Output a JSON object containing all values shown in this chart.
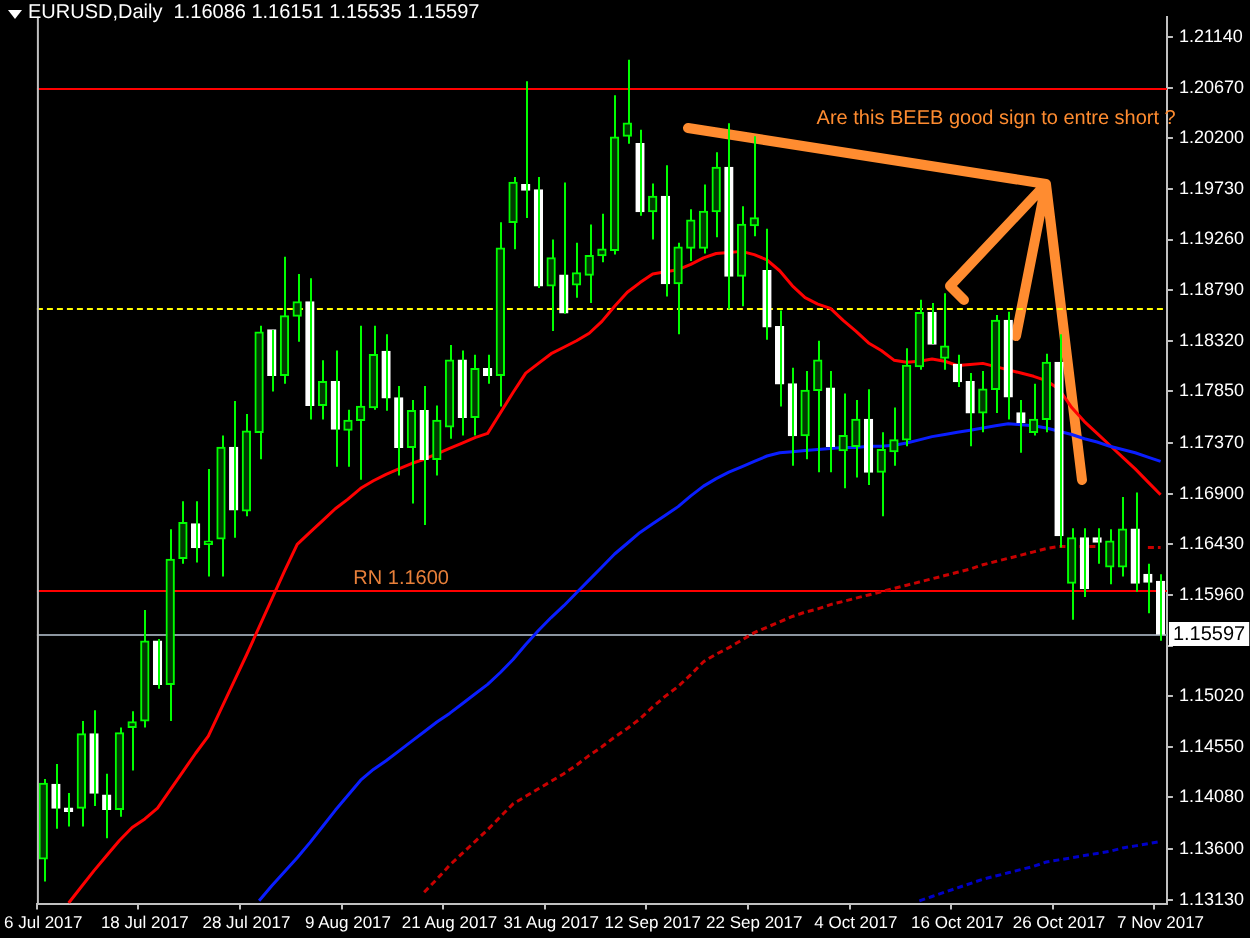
{
  "chart_data": {
    "type": "candlestick",
    "title": "EURUSD,Daily  1.16086 1.16151 1.15535 1.15597",
    "categories": [
      "6 Jul 2017",
      null,
      null,
      null,
      null,
      null,
      null,
      null,
      "18 Jul 2017",
      null,
      null,
      null,
      null,
      null,
      null,
      null,
      "28 Jul 2017",
      null,
      null,
      null,
      null,
      null,
      null,
      null,
      "9 Aug 2017",
      null,
      null,
      null,
      null,
      null,
      null,
      null,
      "21 Aug 2017",
      null,
      null,
      null,
      null,
      null,
      null,
      null,
      "31 Aug 2017",
      null,
      null,
      null,
      null,
      null,
      null,
      null,
      "12 Sep 2017",
      null,
      null,
      null,
      null,
      null,
      null,
      null,
      "22 Sep 2017",
      null,
      null,
      null,
      null,
      null,
      null,
      null,
      "4 Oct 2017",
      null,
      null,
      null,
      null,
      null,
      null,
      null,
      "16 Oct 2017",
      null,
      null,
      null,
      null,
      null,
      null,
      null,
      "26 Oct 2017",
      null,
      null,
      null,
      null,
      null,
      null,
      null,
      "7 Nov 2017"
    ],
    "series": [
      {
        "type": "line",
        "color": "#0000c8",
        "line_style": "dashed",
        "values": [
          null,
          null,
          null,
          null,
          null,
          null,
          null,
          null,
          null,
          null,
          null,
          null,
          null,
          null,
          null,
          null,
          null,
          null,
          null,
          null,
          null,
          null,
          null,
          null,
          null,
          null,
          null,
          null,
          null,
          null,
          null,
          null,
          null,
          null,
          null,
          null,
          null,
          null,
          null,
          null,
          null,
          null,
          null,
          null,
          null,
          null,
          null,
          null,
          null,
          null,
          null,
          null,
          null,
          null,
          null,
          null,
          null,
          null,
          null,
          null,
          null,
          null,
          null,
          null,
          null,
          null,
          null,
          null,
          null,
          1.1312,
          1.1316,
          1.132,
          1.1324,
          1.1328,
          1.1332,
          1.1335,
          1.1338,
          1.1341,
          1.1344,
          1.1348,
          1.135,
          1.1352,
          1.1354,
          1.1356,
          1.1358,
          1.1361,
          1.1363,
          1.1365,
          1.1367
        ]
      },
      {
        "type": "line",
        "color": "#c80000",
        "line_style": "dashed",
        "values": [
          null,
          null,
          null,
          null,
          null,
          null,
          null,
          null,
          null,
          null,
          null,
          null,
          null,
          null,
          null,
          null,
          null,
          null,
          null,
          null,
          null,
          null,
          null,
          null,
          null,
          null,
          null,
          null,
          null,
          null,
          1.132,
          1.1332,
          1.1345,
          1.1356,
          1.1367,
          1.1378,
          1.139,
          1.1402,
          1.1409,
          1.1416,
          1.1423,
          1.143,
          1.1438,
          1.1447,
          1.1455,
          1.1464,
          1.1472,
          1.1481,
          1.1492,
          1.1502,
          1.1511,
          1.1522,
          1.1534,
          1.1541,
          1.1547,
          1.1554,
          1.1561,
          1.1566,
          1.1571,
          1.1576,
          1.158,
          1.1583,
          1.1587,
          1.159,
          1.1593,
          1.1596,
          1.1599,
          1.1602,
          1.1605,
          1.1608,
          1.1611,
          1.1614,
          1.1617,
          1.162,
          1.1624,
          1.1627,
          1.163,
          1.1633,
          1.1636,
          1.1639,
          1.1641,
          1.1641,
          1.1641,
          1.1641,
          null,
          null,
          null,
          1.164,
          1.164
        ]
      },
      {
        "type": "line",
        "color": "#0a1eff",
        "line_style": "solid",
        "values": [
          null,
          null,
          null,
          null,
          null,
          null,
          null,
          null,
          null,
          null,
          null,
          null,
          null,
          null,
          null,
          null,
          null,
          1.1312,
          1.1326,
          1.1339,
          1.1352,
          1.1366,
          1.1381,
          1.1396,
          1.141,
          1.1424,
          1.1434,
          1.1442,
          1.1451,
          1.146,
          1.1469,
          1.1478,
          1.1486,
          1.1495,
          1.1504,
          1.1513,
          1.1524,
          1.1536,
          1.155,
          1.1563,
          1.1575,
          1.1586,
          1.1598,
          1.161,
          1.1622,
          1.1634,
          1.1644,
          1.1654,
          1.1662,
          1.167,
          1.1678,
          1.1688,
          1.1697,
          1.1704,
          1.171,
          1.1715,
          1.172,
          1.1725,
          1.1728,
          1.1729,
          1.173,
          1.1731,
          1.1732,
          1.1733,
          1.1733,
          1.1734,
          1.1734,
          1.1735,
          1.1737,
          1.174,
          1.1743,
          1.1745,
          1.1747,
          1.1749,
          1.1751,
          1.1753,
          1.1755,
          1.1754,
          1.1753,
          1.1751,
          1.1748,
          1.1745,
          1.1741,
          1.1738,
          1.1734,
          1.1731,
          1.1728,
          1.1724,
          1.172
        ]
      },
      {
        "type": "line",
        "color": "#ff0000",
        "line_style": "solid",
        "values": [
          null,
          null,
          1.131,
          1.1325,
          1.134,
          1.1354,
          1.1368,
          1.138,
          1.1388,
          1.1398,
          1.1415,
          1.1432,
          1.1449,
          1.1465,
          1.149,
          1.1515,
          1.154,
          1.1566,
          1.1592,
          1.1618,
          1.1643,
          1.1654,
          1.1665,
          1.1676,
          1.1685,
          1.1695,
          1.1702,
          1.1708,
          1.1713,
          1.1718,
          1.1722,
          1.1727,
          1.1732,
          1.1737,
          1.1742,
          1.1746,
          1.1765,
          1.1784,
          1.1802,
          1.1811,
          1.182,
          1.1826,
          1.1832,
          1.1839,
          1.185,
          1.1864,
          1.1877,
          1.1886,
          1.1894,
          1.1896,
          1.1898,
          1.1903,
          1.1909,
          1.1913,
          1.1914,
          1.1915,
          1.1912,
          1.1907,
          1.1897,
          1.1883,
          1.1872,
          1.1866,
          1.1862,
          1.1851,
          1.1841,
          1.183,
          1.1823,
          1.1814,
          1.1812,
          1.1813,
          1.1815,
          1.1813,
          1.1809,
          1.181,
          1.1811,
          1.1808,
          1.1805,
          1.1802,
          1.1799,
          1.1795,
          1.1787,
          1.177,
          1.1757,
          1.1746,
          1.1735,
          1.1724,
          1.1713,
          1.1701,
          1.1689
        ]
      },
      {
        "color": "#00ff00",
        "colors": [
          "#00ff00",
          "#ffffff",
          "#ffffff",
          "#00ff00",
          "#ffffff",
          "#ffffff",
          "#00ff00",
          "#00ff00",
          "#00ff00",
          "#ffffff",
          "#00ff00",
          "#00ff00",
          "#ffffff",
          "#00ff00",
          "#00ff00",
          "#ffffff",
          "#00ff00",
          "#00ff00",
          "#ffffff",
          "#00ff00",
          "#00ff00",
          "#ffffff",
          "#00ff00",
          "#ffffff",
          "#00ff00",
          "#00ff00",
          "#00ff00",
          "#ffffff",
          "#ffffff",
          "#00ff00",
          "#ffffff",
          "#00ff00",
          "#00ff00",
          "#ffffff",
          "#00ff00",
          "#ffffff",
          "#00ff00",
          "#00ff00",
          "#ffffff",
          "#ffffff",
          "#00ff00",
          "#ffffff",
          "#00ff00",
          "#00ff00",
          "#00ff00",
          "#00ff00",
          "#00ff00",
          "#ffffff",
          "#00ff00",
          "#ffffff",
          "#00ff00",
          "#00ff00",
          "#00ff00",
          "#00ff00",
          "#ffffff",
          "#00ff00",
          "#00ff00",
          "#ffffff",
          "#ffffff",
          "#ffffff",
          "#00ff00",
          "#00ff00",
          "#ffffff",
          "#00ff00",
          "#00ff00",
          "#ffffff",
          "#00ff00",
          "#00ff00",
          "#00ff00",
          "#00ff00",
          "#ffffff",
          "#00ff00",
          "#ffffff",
          "#ffffff",
          "#00ff00",
          "#00ff00",
          "#ffffff",
          "#ffffff",
          "#00ff00",
          "#00ff00",
          "#ffffff",
          "#00ff00",
          "#ffffff",
          "#ffffff",
          "#00ff00",
          "#00ff00",
          "#ffffff",
          "#ffffff",
          "#ffffff"
        ],
        "ohlc": [
          [
            1.1351,
            1.1425,
            1.133,
            1.1421
          ],
          [
            1.142,
            1.1439,
            1.1379,
            1.1398
          ],
          [
            1.1398,
            1.1412,
            1.1381,
            1.1395
          ],
          [
            1.1398,
            1.1479,
            1.1381,
            1.1467
          ],
          [
            1.1467,
            1.1489,
            1.14,
            1.1412
          ],
          [
            1.141,
            1.143,
            1.137,
            1.1397
          ],
          [
            1.1397,
            1.1473,
            1.139,
            1.1468
          ],
          [
            1.1473,
            1.1488,
            1.1433,
            1.1478
          ],
          [
            1.1479,
            1.1582,
            1.1473,
            1.1553
          ],
          [
            1.1553,
            1.1555,
            1.1509,
            1.1513
          ],
          [
            1.1513,
            1.1657,
            1.1479,
            1.1629
          ],
          [
            1.163,
            1.1683,
            1.1625,
            1.1663
          ],
          [
            1.1662,
            1.1683,
            1.1626,
            1.164
          ],
          [
            1.1643,
            1.1713,
            1.1613,
            1.1646
          ],
          [
            1.1648,
            1.1744,
            1.1613,
            1.1733
          ],
          [
            1.1733,
            1.1776,
            1.1649,
            1.1675
          ],
          [
            1.1674,
            1.1764,
            1.1669,
            1.1748
          ],
          [
            1.1747,
            1.1846,
            1.1722,
            1.184
          ],
          [
            1.1842,
            1.1842,
            1.1785,
            1.18
          ],
          [
            1.18,
            1.191,
            1.1792,
            1.1855
          ],
          [
            1.1855,
            1.1894,
            1.1831,
            1.1868
          ],
          [
            1.1868,
            1.189,
            1.1759,
            1.1772
          ],
          [
            1.1772,
            1.1814,
            1.1759,
            1.1794
          ],
          [
            1.1794,
            1.1823,
            1.1715,
            1.175
          ],
          [
            1.1749,
            1.1768,
            1.1715,
            1.1758
          ],
          [
            1.1758,
            1.1846,
            1.1703,
            1.1771
          ],
          [
            1.177,
            1.1846,
            1.1768,
            1.1819
          ],
          [
            1.1822,
            1.1838,
            1.1767,
            1.1779
          ],
          [
            1.1779,
            1.179,
            1.1707,
            1.1733
          ],
          [
            1.1733,
            1.1777,
            1.1681,
            1.1767
          ],
          [
            1.1767,
            1.179,
            1.1661,
            1.1722
          ],
          [
            1.1722,
            1.1772,
            1.1707,
            1.1758
          ],
          [
            1.1752,
            1.1828,
            1.1741,
            1.1814
          ],
          [
            1.1814,
            1.1823,
            1.1744,
            1.1761
          ],
          [
            1.1761,
            1.1819,
            1.1744,
            1.1806
          ],
          [
            1.1806,
            1.1819,
            1.1792,
            1.18
          ],
          [
            1.18,
            1.1942,
            1.1771,
            1.1918
          ],
          [
            1.1942,
            1.1984,
            1.1917,
            1.1979
          ],
          [
            1.1977,
            1.2073,
            1.1946,
            1.1972
          ],
          [
            1.1972,
            1.1984,
            1.1881,
            1.1883
          ],
          [
            1.1883,
            1.1926,
            1.1841,
            1.1909
          ],
          [
            1.1893,
            1.1979,
            1.1857,
            1.1858
          ],
          [
            1.1884,
            1.1923,
            1.1872,
            1.1895
          ],
          [
            1.1893,
            1.194,
            1.1867,
            1.1911
          ],
          [
            1.1911,
            1.195,
            1.1905,
            1.1917
          ],
          [
            1.1916,
            1.206,
            1.1912,
            1.2021
          ],
          [
            1.2022,
            1.2093,
            1.2015,
            1.2034
          ],
          [
            1.2015,
            1.2028,
            1.1948,
            1.1952
          ],
          [
            1.1952,
            1.1978,
            1.1926,
            1.1966
          ],
          [
            1.1966,
            1.1995,
            1.1873,
            1.1885
          ],
          [
            1.1885,
            1.1923,
            1.1838,
            1.1919
          ],
          [
            1.1918,
            1.1954,
            1.1906,
            1.1944
          ],
          [
            1.1918,
            1.1977,
            1.1913,
            1.1952
          ],
          [
            1.1952,
            1.2007,
            1.1928,
            1.1993
          ],
          [
            1.1993,
            1.2034,
            1.1861,
            1.1892
          ],
          [
            1.1892,
            1.1957,
            1.1864,
            1.194
          ],
          [
            1.1939,
            1.2022,
            1.1929,
            1.1946
          ],
          [
            1.1897,
            1.1936,
            1.1833,
            1.1845
          ],
          [
            1.1845,
            1.186,
            1.1771,
            1.1792
          ],
          [
            1.1792,
            1.1807,
            1.1716,
            1.1744
          ],
          [
            1.1744,
            1.1804,
            1.1722,
            1.1786
          ],
          [
            1.1786,
            1.1832,
            1.171,
            1.1814
          ],
          [
            1.1788,
            1.1804,
            1.171,
            1.1734
          ],
          [
            1.173,
            1.1783,
            1.1695,
            1.1744
          ],
          [
            1.1734,
            1.1777,
            1.1705,
            1.1759
          ],
          [
            1.1759,
            1.1787,
            1.1698,
            1.171
          ],
          [
            1.171,
            1.1747,
            1.1669,
            1.1731
          ],
          [
            1.1729,
            1.177,
            1.1716,
            1.174
          ],
          [
            1.174,
            1.1825,
            1.1734,
            1.1809
          ],
          [
            1.1808,
            1.187,
            1.1805,
            1.1858
          ],
          [
            1.1858,
            1.1867,
            1.1829,
            1.1829
          ],
          [
            1.1816,
            1.1876,
            1.1805,
            1.1827
          ],
          [
            1.181,
            1.1819,
            1.1789,
            1.1794
          ],
          [
            1.1794,
            1.1802,
            1.1734,
            1.1765
          ],
          [
            1.1765,
            1.1804,
            1.1747,
            1.1787
          ],
          [
            1.1787,
            1.1856,
            1.1765,
            1.1851
          ],
          [
            1.1851,
            1.1859,
            1.1759,
            1.178
          ],
          [
            1.1765,
            1.1777,
            1.1728,
            1.1756
          ],
          [
            1.1747,
            1.1792,
            1.1744,
            1.1759
          ],
          [
            1.1759,
            1.182,
            1.1747,
            1.1812
          ],
          [
            1.1812,
            1.1838,
            1.164,
            1.1651
          ],
          [
            1.1607,
            1.1658,
            1.1573,
            1.1649
          ],
          [
            1.1649,
            1.1658,
            1.1594,
            1.1602
          ],
          [
            1.1649,
            1.1658,
            1.1625,
            1.1645
          ],
          [
            1.1622,
            1.1657,
            1.1606,
            1.1646
          ],
          [
            1.1622,
            1.1687,
            1.1613,
            1.1657
          ],
          [
            1.1657,
            1.1691,
            1.1599,
            1.1607
          ],
          [
            1.1615,
            1.1625,
            1.1579,
            1.1608
          ],
          [
            1.16086,
            1.16151,
            1.15535,
            1.15597
          ]
        ]
      }
    ],
    "ylim": [
      1.13094,
      1.21328
    ],
    "yticks": [
      {
        "value": 1.2114,
        "label": "1.21140"
      },
      {
        "value": 1.2067,
        "label": "1.20670"
      },
      {
        "value": 1.202,
        "label": "1.20200"
      },
      {
        "value": 1.1973,
        "label": "1.19730"
      },
      {
        "value": 1.1926,
        "label": "1.19260"
      },
      {
        "value": 1.1879,
        "label": "1.18790"
      },
      {
        "value": 1.1832,
        "label": "1.18320"
      },
      {
        "value": 1.1785,
        "label": "1.17850"
      },
      {
        "value": 1.1737,
        "label": "1.17370"
      },
      {
        "value": 1.169,
        "label": "1.16900"
      },
      {
        "value": 1.1643,
        "label": "1.16430"
      },
      {
        "value": 1.1596,
        "label": "1.15960"
      },
      {
        "value": 1.1549,
        "label": null
      },
      {
        "value": 1.1502,
        "label": "1.15020"
      },
      {
        "value": 1.1455,
        "label": "1.14550"
      },
      {
        "value": 1.1408,
        "label": "1.14080"
      },
      {
        "value": 1.136,
        "label": "1.13600"
      },
      {
        "value": 1.1313,
        "label": "1.13130"
      }
    ],
    "ref_lines": [
      {
        "axis": "y",
        "value": 1.2067,
        "color": "#ff0000"
      },
      {
        "axis": "y",
        "value": 1.1862,
        "color": "#ffff00",
        "line_style": "dashed"
      },
      {
        "axis": "y",
        "value": 1.16,
        "label": "RN 1.1600",
        "color": "#ff0000"
      },
      {
        "axis": "y",
        "value": 1.15597,
        "label": "1.15597",
        "color": "#8c96a0"
      }
    ],
    "annotations": [
      "Are this BEEB good sign to entre short ?"
    ],
    "marker": "none"
  }
}
